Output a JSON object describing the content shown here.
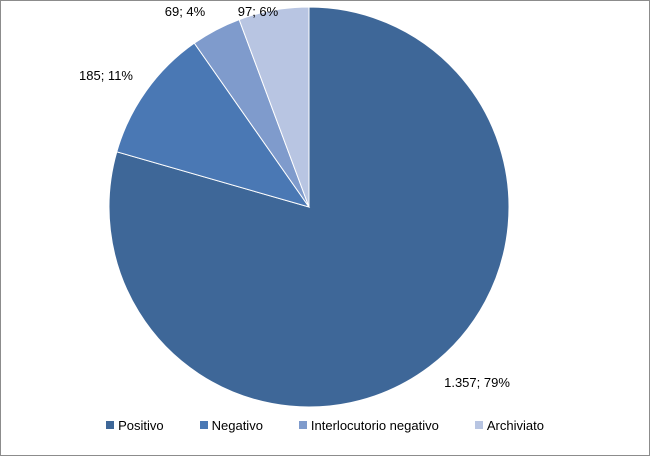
{
  "chart_data": {
    "type": "pie",
    "title": "",
    "slices": [
      {
        "name": "Positivo",
        "value": 1357,
        "label": "1.357; 79%",
        "percent": 79,
        "color": "#3e6798"
      },
      {
        "name": "Negativo",
        "value": 185,
        "label": "185; 11%",
        "percent": 11,
        "color": "#4a78b4"
      },
      {
        "name": "Interlocutorio negativo",
        "value": 69,
        "label": "69; 4%",
        "percent": 4,
        "color": "#7f9bcc"
      },
      {
        "name": "Archiviato",
        "value": 97,
        "label": "97; 6%",
        "percent": 6,
        "color": "#b8c5e2"
      }
    ],
    "legend_position": "bottom"
  }
}
